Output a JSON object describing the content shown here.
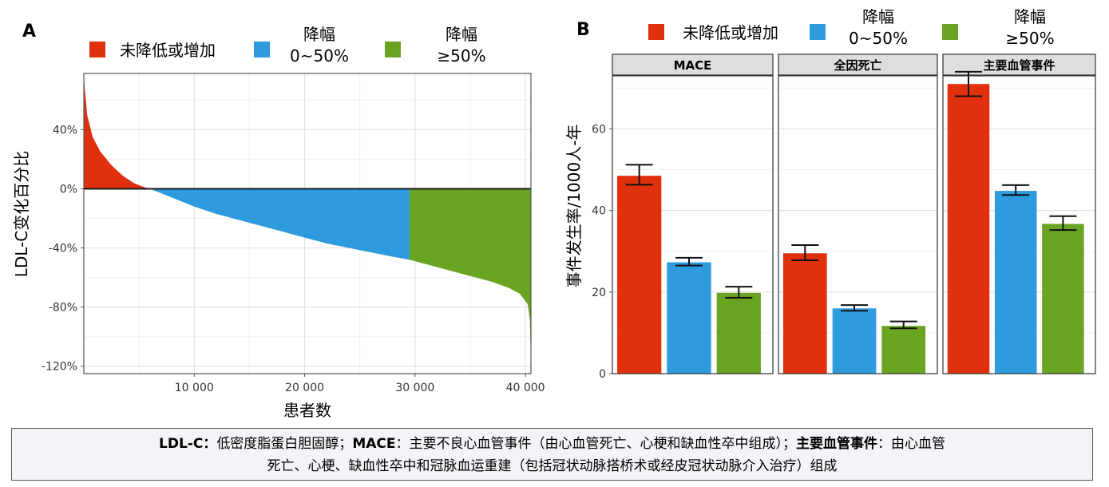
{
  "panel_a": {
    "label": "A",
    "legend": [
      {
        "l1": "未降低或增加",
        "l2": "",
        "color": "#e0300e"
      },
      {
        "l1": "降幅",
        "l2": "0~50%",
        "color": "#2e9bdf"
      },
      {
        "l1": "降幅",
        "l2": "≥50%",
        "color": "#6aa423"
      }
    ]
  },
  "panel_b": {
    "label": "B",
    "legend": [
      {
        "l1": "未降低或增加",
        "l2": "",
        "color": "#e0300e"
      },
      {
        "l1": "降幅",
        "l2": "0~50%",
        "color": "#2e9bdf"
      },
      {
        "l1": "降幅",
        "l2": "≥50%",
        "color": "#6aa423"
      }
    ]
  },
  "footnote": {
    "t1": "LDL-C：",
    "t2": "低密度脂蛋白胆固醇；",
    "t3": "MACE",
    "t4": "：主要不良心血管事件（由心血管死亡、心梗和缺血性卒中组成）；",
    "t5": "主要血管事件",
    "t6": "：由心血管",
    "t7": "死亡、心梗、缺血性卒中和冠脉血运重建（包括冠状动脉搭桥术或经皮冠状动脉介入治疗）组成"
  },
  "chart_data": [
    {
      "type": "area",
      "panel": "A",
      "xlabel": "患者数",
      "ylabel": "LDL-C变化百分比",
      "xlim": [
        0,
        40500
      ],
      "ylim": [
        -125,
        78
      ],
      "xticks": [
        10000,
        20000,
        30000,
        40000
      ],
      "xtick_labels": [
        "10 000",
        "20 000",
        "30 000",
        "40 000"
      ],
      "yticks": [
        40,
        0,
        -40,
        -80,
        -120
      ],
      "ytick_labels": [
        "40%",
        "0%",
        "-40%",
        "-80%",
        "-120%"
      ],
      "grid": true,
      "series": [
        {
          "name": "未降低或增加",
          "color": "#e0300e",
          "x": [
            0,
            300,
            800,
            1500,
            2500,
            3500,
            4500,
            5500,
            6000
          ],
          "y": [
            75,
            50,
            35,
            25,
            16,
            9,
            4,
            1,
            0
          ]
        },
        {
          "name": "降幅 0~50%",
          "color": "#2e9bdf",
          "x": [
            6000,
            8000,
            10000,
            12000,
            14000,
            16000,
            18000,
            20000,
            22000,
            24000,
            26000,
            28000,
            29500
          ],
          "y": [
            0,
            -6,
            -12,
            -17,
            -21,
            -25,
            -29,
            -33,
            -37,
            -40,
            -43,
            -46,
            -48
          ]
        },
        {
          "name": "降幅 ≥50%",
          "color": "#6aa423",
          "x": [
            29500,
            31000,
            33000,
            35000,
            37000,
            38500,
            39500,
            40200,
            40400,
            40500
          ],
          "y": [
            -48,
            -51,
            -55,
            -59,
            -63,
            -67,
            -71,
            -78,
            -88,
            -118
          ]
        }
      ]
    },
    {
      "type": "bar",
      "panel": "B",
      "ylabel": "事件发生率/1000人-年",
      "ylim": [
        0,
        73
      ],
      "yticks": [
        0,
        20,
        40,
        60
      ],
      "grid": true,
      "facets": [
        "MACE",
        "全因死亡",
        "主要血管事件"
      ],
      "groups": [
        "未降低或增加",
        "降幅 0~50%",
        "降幅 ≥50%"
      ],
      "colors": [
        "#e0300e",
        "#2e9bdf",
        "#6aa423"
      ],
      "values": [
        [
          48.5,
          27.3,
          19.8
        ],
        [
          29.5,
          16.0,
          11.7
        ],
        [
          71.0,
          44.8,
          36.7
        ]
      ],
      "error_low": [
        [
          46.3,
          26.5,
          18.6
        ],
        [
          27.8,
          15.4,
          11.1
        ],
        [
          68.0,
          43.8,
          35.2
        ]
      ],
      "error_high": [
        [
          51.2,
          28.4,
          21.3
        ],
        [
          31.5,
          16.8,
          12.8
        ],
        [
          74.0,
          46.2,
          38.6
        ]
      ]
    }
  ]
}
